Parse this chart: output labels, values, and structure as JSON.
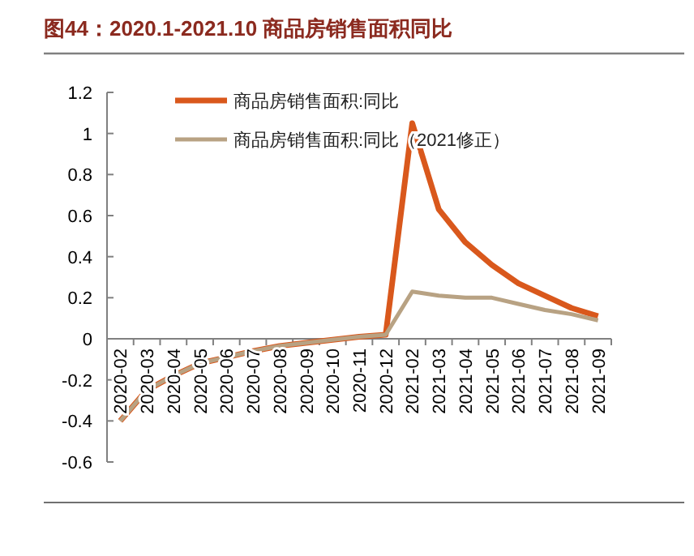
{
  "chart_data": {
    "type": "line",
    "title": "图44：2020.1-2021.10 商品房销售面积同比",
    "categories": [
      "2020-02",
      "2020-03",
      "2020-04",
      "2020-05",
      "2020-06",
      "2020-07",
      "2020-08",
      "2020-09",
      "2020-10",
      "2020-11",
      "2020-12",
      "2021-02",
      "2021-03",
      "2021-04",
      "2021-05",
      "2021-06",
      "2021-07",
      "2021-08",
      "2021-09"
    ],
    "series": [
      {
        "name": "商品房销售面积:同比",
        "color": "#d9581c",
        "values": [
          -0.4,
          -0.25,
          -0.18,
          -0.12,
          -0.09,
          -0.06,
          -0.035,
          -0.02,
          -0.005,
          0.01,
          0.02,
          1.05,
          0.63,
          0.47,
          0.36,
          0.27,
          0.21,
          0.15,
          0.11
        ]
      },
      {
        "name": "商品房销售面积:同比（2021修正）",
        "color": "#b8a283",
        "values": [
          -0.4,
          -0.25,
          -0.18,
          -0.12,
          -0.09,
          -0.06,
          -0.035,
          -0.02,
          -0.005,
          0.01,
          0.02,
          0.23,
          0.21,
          0.2,
          0.2,
          0.17,
          0.14,
          0.12,
          0.09
        ]
      }
    ],
    "ylim": [
      -0.6,
      1.2
    ],
    "yticks": [
      -0.6,
      -0.4,
      -0.2,
      0,
      0.2,
      0.4,
      0.6,
      0.8,
      1,
      1.2
    ],
    "legend": "top",
    "grid": false,
    "marker": "none",
    "line_style": "solid"
  }
}
